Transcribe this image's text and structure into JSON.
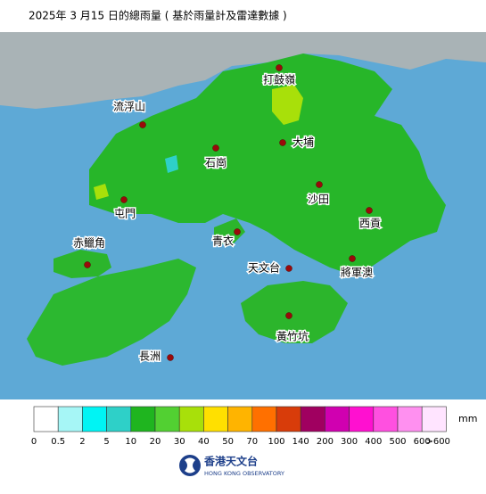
{
  "title": "2025年 3 月15 日的總雨量 ( 基於雨量計及雷達數據 )",
  "places": [
    "打鼓嶺",
    "流浮山",
    "大埔",
    "石崗",
    "沙田",
    "屯門",
    "西貢",
    "青衣",
    "赤鱲角",
    "天文台",
    "將軍澳",
    "黃竹坑",
    "長洲"
  ],
  "legend": {
    "unit": "mm",
    "colors": [
      "#ffffff",
      "#a6f6f6",
      "#00f4f4",
      "#2ed0c8",
      "#1fb51f",
      "#52d032",
      "#a8e00a",
      "#ffe000",
      "#ffb400",
      "#ff7000",
      "#d83c0a",
      "#a00060",
      "#d000b0",
      "#ff10d0",
      "#ff50e0",
      "#ff90f0",
      "#ffe4ff"
    ],
    "labels": [
      "0",
      "0.5",
      "2",
      "5",
      "10",
      "20",
      "30",
      "40",
      "50",
      "70",
      "100",
      "140",
      "200",
      "300",
      "400",
      "500",
      "600",
      ">600"
    ]
  },
  "logo": {
    "name": "香港天文台",
    "name_en": "HONG KONG OBSERVATORY"
  }
}
